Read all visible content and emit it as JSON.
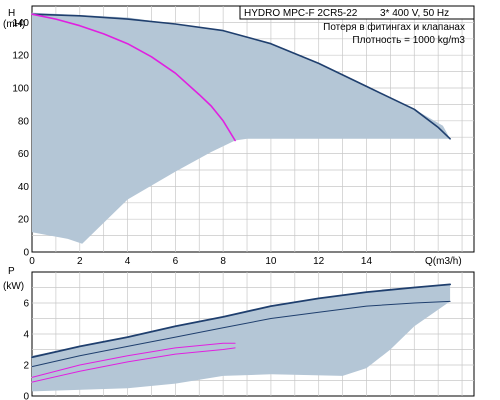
{
  "header": {
    "model": "HYDRO MPC-F 2CR5-22",
    "supply": "3* 400 V, 50 Hz",
    "note1": "Потеря в фитингах и клапанах",
    "note2": "Плотность = 1000 kg/m3"
  },
  "colors": {
    "band": "#b4c6d6",
    "curve": "#1f3f6e",
    "lossCurve": "#e020e0",
    "grid": "#c8c8c8"
  },
  "chart_data": [
    {
      "type": "line",
      "name": "head",
      "ylabel": "H",
      "yunit": "(mH)",
      "xlabel": "Q(m3/h)",
      "xlim": [
        0,
        18.5
      ],
      "ylim": [
        0,
        150
      ],
      "xticks": [
        "0",
        "2",
        "4",
        "6",
        "8",
        "10",
        "12",
        "14"
      ],
      "yticks": [
        "0",
        "20",
        "40",
        "60",
        "80",
        "100",
        "120",
        "140"
      ],
      "grid": true,
      "band_upper": [
        [
          0,
          146
        ],
        [
          4,
          143
        ],
        [
          8,
          135
        ],
        [
          10,
          127
        ],
        [
          12,
          115
        ],
        [
          14,
          101
        ],
        [
          16,
          87
        ],
        [
          17.2,
          77
        ],
        [
          17.5,
          69
        ]
      ],
      "band_lower": [
        [
          17.5,
          69
        ],
        [
          9,
          69
        ],
        [
          8.5,
          68
        ],
        [
          7.5,
          61
        ],
        [
          6,
          49
        ],
        [
          4,
          32
        ],
        [
          2.1,
          5
        ],
        [
          1.5,
          8
        ],
        [
          0,
          12
        ]
      ],
      "series": [
        {
          "x": [
            0,
            2,
            4,
            6,
            8,
            10,
            12,
            14,
            16,
            17,
            17.5
          ],
          "values": [
            145,
            144,
            142,
            139,
            135,
            127,
            115,
            101,
            87,
            76,
            69
          ]
        },
        {
          "x": [
            0,
            1,
            2,
            3,
            4,
            5,
            6,
            7,
            7.5,
            8,
            8.5
          ],
          "values": [
            145,
            142,
            138,
            133,
            127,
            119,
            109,
            96,
            89,
            80,
            68
          ]
        }
      ]
    },
    {
      "type": "line",
      "name": "power",
      "ylabel": "P",
      "yunit": "(kW)",
      "xlim": [
        0,
        18.5
      ],
      "ylim": [
        0,
        8
      ],
      "yticks": [
        "0",
        "2",
        "4",
        "6"
      ],
      "grid": true,
      "band_upper": [
        [
          0,
          2.6
        ],
        [
          4,
          3.8
        ],
        [
          8,
          5.1
        ],
        [
          10,
          5.8
        ],
        [
          12,
          6.3
        ],
        [
          14,
          6.7
        ],
        [
          16,
          7
        ],
        [
          17.5,
          7.2
        ]
      ],
      "band_lower": [
        [
          17.5,
          6.1
        ],
        [
          16,
          4.5
        ],
        [
          15,
          3
        ],
        [
          14,
          1.8
        ],
        [
          13,
          1.3
        ],
        [
          10,
          1.4
        ],
        [
          8,
          1.3
        ],
        [
          6,
          0.8
        ],
        [
          4,
          0.5
        ],
        [
          0,
          0.3
        ]
      ],
      "series": [
        {
          "x": [
            0,
            2,
            4,
            6,
            8,
            10,
            12,
            14,
            16,
            17.5
          ],
          "values": [
            2.5,
            3.2,
            3.8,
            4.5,
            5.1,
            5.8,
            6.3,
            6.7,
            7,
            7.2
          ]
        },
        {
          "x": [
            0,
            2,
            4,
            6,
            8,
            10,
            12,
            14,
            16,
            17.5
          ],
          "values": [
            1.9,
            2.6,
            3.2,
            3.8,
            4.4,
            5,
            5.4,
            5.8,
            6,
            6.1
          ]
        },
        {
          "x": [
            0,
            2,
            4,
            6,
            8,
            8.5
          ],
          "values": [
            1.2,
            2,
            2.6,
            3.1,
            3.4,
            3.4
          ]
        },
        {
          "x": [
            0,
            2,
            4,
            6,
            8,
            8.5
          ],
          "values": [
            0.9,
            1.6,
            2.2,
            2.7,
            3,
            3.1
          ]
        }
      ]
    }
  ]
}
